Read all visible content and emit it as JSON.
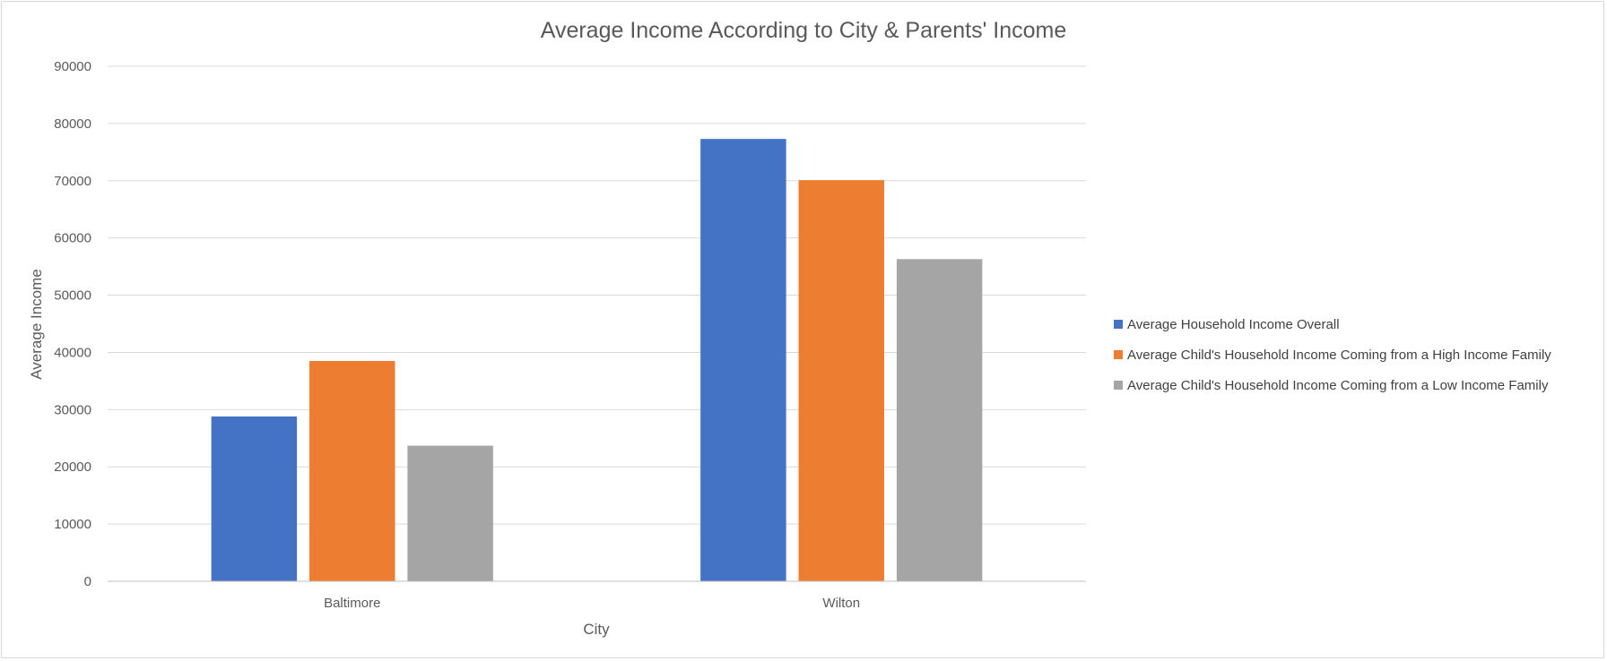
{
  "chart_data": {
    "type": "bar",
    "title": "Average Income According to City & Parents' Income",
    "xlabel": "City",
    "ylabel": "Average Income",
    "categories": [
      "Baltimore",
      "Wilton"
    ],
    "series": [
      {
        "name": "Average Household Income Overall",
        "color": "#4472C4",
        "values": [
          28800,
          77300
        ]
      },
      {
        "name": "Average Child's Household Income Coming from a High Income Family",
        "color": "#ED7D31",
        "values": [
          38500,
          70100
        ]
      },
      {
        "name": "Average Child's Household Income Coming from a Low Income Family",
        "color": "#A5A5A5",
        "values": [
          23700,
          56300
        ]
      }
    ],
    "ylim": [
      0,
      90000
    ],
    "yticks": [
      "0",
      "10000",
      "20000",
      "30000",
      "40000",
      "50000",
      "60000",
      "70000",
      "80000",
      "90000"
    ],
    "grid": true,
    "legend_position": "right"
  }
}
